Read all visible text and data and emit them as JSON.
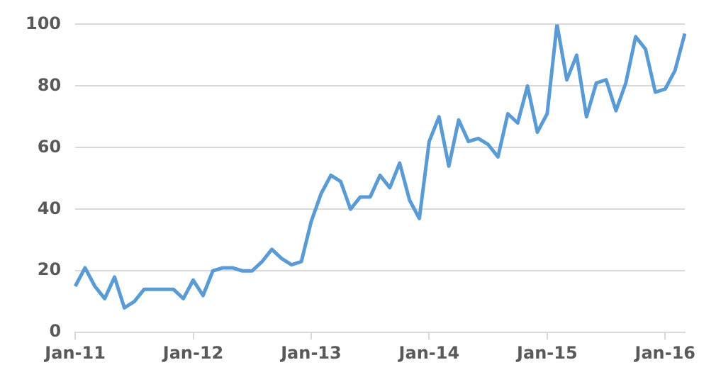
{
  "chart_data": {
    "type": "line",
    "categories": [
      "Jan-11",
      null,
      null,
      null,
      null,
      null,
      null,
      null,
      null,
      null,
      null,
      null,
      "Jan-12",
      null,
      null,
      null,
      null,
      null,
      null,
      null,
      null,
      null,
      null,
      null,
      "Jan-13",
      null,
      null,
      null,
      null,
      null,
      null,
      null,
      null,
      null,
      null,
      null,
      "Jan-14",
      null,
      null,
      null,
      null,
      null,
      null,
      null,
      null,
      null,
      null,
      null,
      "Jan-15",
      null,
      null,
      null,
      null,
      null,
      null,
      null,
      null,
      null,
      null,
      null,
      "Jan-16",
      null,
      null
    ],
    "series": [
      {
        "color": "#5b9bd5",
        "values": [
          15,
          21,
          15,
          11,
          18,
          8,
          10,
          14,
          14,
          14,
          14,
          11,
          17,
          12,
          20,
          21,
          21,
          20,
          20,
          23,
          27,
          24,
          22,
          23,
          36,
          45,
          51,
          49,
          40,
          44,
          44,
          51,
          47,
          55,
          43,
          37,
          62,
          70,
          54,
          69,
          62,
          63,
          61,
          57,
          71,
          68,
          80,
          65,
          71,
          100,
          82,
          90,
          70,
          81,
          82,
          72,
          81,
          96,
          92,
          78,
          79,
          85,
          97
        ]
      }
    ],
    "ylim": [
      0,
      100
    ],
    "yticks": [
      0,
      20,
      40,
      60,
      80,
      100
    ],
    "grid": "y",
    "legend": false,
    "marker": "none",
    "line_style": "solid"
  }
}
